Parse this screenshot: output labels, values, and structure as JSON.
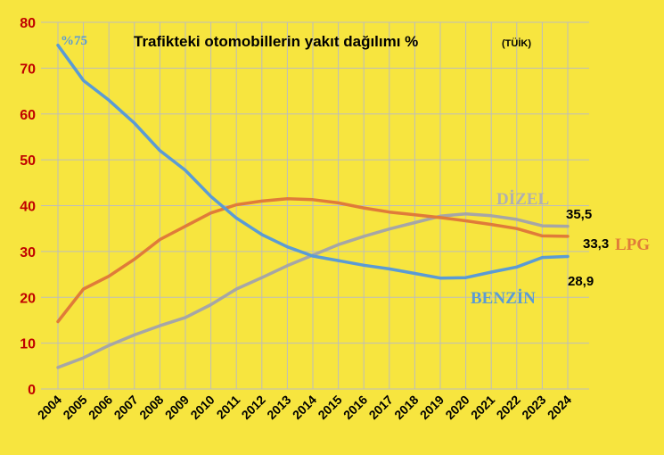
{
  "chart_data": {
    "type": "line",
    "title": "Trafikteki otomobillerin yakıt dağılımı %",
    "subtitle": "(TÜİK)",
    "categories": [
      "2004",
      "2005",
      "2006",
      "2007",
      "2008",
      "2009",
      "2010",
      "2011",
      "2012",
      "2013",
      "2014",
      "2015",
      "2016",
      "2017",
      "2018",
      "2019",
      "2020",
      "2021",
      "2022",
      "2023",
      "2024"
    ],
    "ylim": [
      0,
      80
    ],
    "yticks": [
      0,
      10,
      20,
      30,
      40,
      50,
      60,
      70,
      80
    ],
    "grid": true,
    "series": [
      {
        "name": "BENZİN",
        "color": "#5a9bd5",
        "values": [
          75.0,
          67.3,
          63.0,
          58.0,
          52.0,
          47.7,
          42.0,
          37.3,
          33.7,
          31.0,
          29.0,
          28.0,
          27.0,
          26.2,
          25.2,
          24.2,
          24.3,
          25.5,
          26.6,
          28.7,
          28.9
        ]
      },
      {
        "name": "DİZEL",
        "color": "#a6a6a6",
        "values": [
          4.7,
          6.8,
          9.5,
          11.8,
          13.8,
          15.6,
          18.4,
          21.8,
          24.3,
          26.9,
          29.2,
          31.5,
          33.3,
          34.9,
          36.3,
          37.7,
          38.2,
          37.8,
          37.0,
          35.6,
          35.5
        ]
      },
      {
        "name": "LPG",
        "color": "#e07b39",
        "values": [
          14.7,
          21.8,
          24.6,
          28.3,
          32.6,
          35.5,
          38.4,
          40.2,
          41.0,
          41.5,
          41.3,
          40.6,
          39.5,
          38.6,
          38.0,
          37.4,
          36.7,
          35.9,
          35.0,
          33.4,
          33.3
        ]
      }
    ],
    "annotations": {
      "start_benzin": "%75",
      "end_dizel": "35,5",
      "end_lpg": "33,3",
      "end_benzin": "28,9"
    }
  }
}
